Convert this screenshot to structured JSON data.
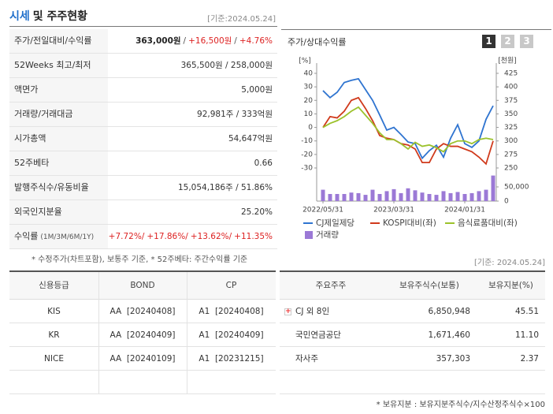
{
  "header": {
    "title_main": "시세",
    "title_rest": "및 주주현황",
    "date": "[기준:2024.05.24]"
  },
  "summary_table": {
    "separator": "/",
    "rows": [
      {
        "label": "주가/전일대비/수익률",
        "values": [
          "363,000원",
          "+16,500원",
          "+4.76%"
        ]
      },
      {
        "label": "52Weeks 최고/최저",
        "value": "365,500원 / 258,000원"
      },
      {
        "label": "액면가",
        "value": "5,000원"
      },
      {
        "label": "거래량/거래대금",
        "value": "92,981주 / 333억원"
      },
      {
        "label": "시가총액",
        "value": "54,647억원"
      },
      {
        "label": "52주베타",
        "value": "0.66"
      },
      {
        "label": "발행주식수/유동비율",
        "value": "15,054,186주 / 51.86%"
      },
      {
        "label": "외국인지분율",
        "value": "25.20%"
      },
      {
        "label": "수익률",
        "label_note": "(1M/3M/6M/1Y)",
        "values": [
          "+7.72%",
          "+17.86%",
          "+13.62%",
          "+11.35%"
        ]
      }
    ]
  },
  "summary_note": "* 수정주가(차트포함), 보통주 기준, * 52주베타: 주간수익률 기준",
  "chart_tabs": [
    "1",
    "2",
    "3"
  ],
  "chart_data": {
    "type": "line",
    "title": "주가/상대수익률",
    "ylabel": "[%]",
    "y2label": "[천원]",
    "categories": [
      "2022/05/31",
      null,
      null,
      null,
      null,
      null,
      null,
      null,
      null,
      null,
      "2023/03/31",
      null,
      null,
      null,
      null,
      null,
      null,
      null,
      null,
      null,
      "2024/01/31",
      null,
      null,
      null,
      null
    ],
    "ylim": [
      -30,
      40
    ],
    "yticks": [
      -30,
      -20,
      -10,
      0,
      10,
      20,
      30,
      40
    ],
    "y2lim": [
      250,
      425
    ],
    "y2ticks": [
      250,
      275,
      300,
      325,
      350,
      375,
      400,
      425
    ],
    "y3lim": [
      0,
      100000
    ],
    "y3ticks": [
      0,
      {
        "value": 50000,
        "label": "50,000"
      }
    ],
    "series": [
      {
        "name": "CJ제일제당",
        "color": "#2f74d0",
        "axis": "y2",
        "values": [
          393,
          380,
          390,
          408,
          412,
          415,
          395,
          375,
          348,
          320,
          325,
          312,
          298,
          295,
          268,
          282,
          292,
          270,
          305,
          330,
          295,
          288,
          300,
          340,
          365
        ]
      },
      {
        "name": "KOSPI대비(좌)",
        "color": "#d03a1c",
        "values": [
          0,
          8,
          7,
          12,
          20,
          22,
          14,
          5,
          -6,
          -8,
          -9,
          -12,
          -13,
          -16,
          -26,
          -26,
          -16,
          -12,
          -14,
          -14,
          -16,
          -18,
          -22,
          -27,
          -10
        ]
      },
      {
        "name": "음식료품대비(좌)",
        "color": "#9cc22c",
        "values": [
          0,
          3,
          5,
          8,
          12,
          15,
          9,
          3,
          -4,
          -9,
          -9,
          -12,
          -16,
          -11,
          -14,
          -13,
          -15,
          -18,
          -12,
          -10,
          -10,
          -12,
          -9,
          -8,
          -9
        ]
      },
      {
        "name": "거래량",
        "color": "#9b79d6",
        "type": "bar",
        "axis": "y3",
        "values": [
          40000,
          25000,
          25000,
          25000,
          30000,
          28000,
          22000,
          40000,
          25000,
          35000,
          42000,
          28000,
          45000,
          38000,
          30000,
          25000,
          22000,
          35000,
          28000,
          32000,
          25000,
          28000,
          35000,
          40000,
          90000
        ]
      }
    ]
  },
  "shareholder_date": "[기준: 2024.05.24]",
  "credit_table": {
    "header": [
      "신용등급",
      "BOND",
      "CP"
    ],
    "rows": [
      [
        "KIS",
        "AA  [20240408]",
        "A1  [20240408]"
      ],
      [
        "KR",
        "AA  [20240409]",
        "A1  [20240409]"
      ],
      [
        "NICE",
        "AA  [20240109]",
        "A1  [20231215]"
      ]
    ]
  },
  "shareholder_table": {
    "header": [
      "주요주주",
      "보유주식수(보통)",
      "보유지분(%)"
    ],
    "rows": [
      [
        "CJ 외 8인",
        "6,850,948",
        "45.51"
      ],
      [
        "국민연금공단",
        "1,671,460",
        "11.10"
      ],
      [
        "자사주",
        "357,303",
        "2.37"
      ]
    ]
  },
  "shareholder_note": "* 보유지분 : 보유지분주식수/지수산정주식수×100"
}
